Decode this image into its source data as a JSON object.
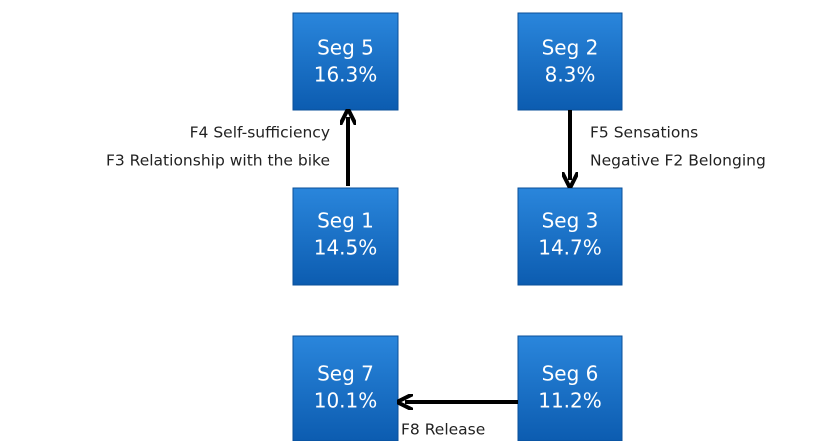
{
  "nodes": [
    {
      "label": "Seg 5",
      "value": "16.3%"
    },
    {
      "label": "Seg 2",
      "value": "8.3%"
    },
    {
      "label": "Seg 1",
      "value": "14.5%"
    },
    {
      "label": "Seg 3",
      "value": "14.7%"
    },
    {
      "label": "Seg 7",
      "value": "10.1%"
    },
    {
      "label": "Seg 6",
      "value": "11.2%"
    }
  ],
  "edges": [
    {
      "labels": [
        "F4 Self-sufficiency",
        "F3 Relationship with the bike"
      ]
    },
    {
      "labels": [
        "F5 Sensations",
        "Negative F2 Belonging"
      ]
    },
    {
      "labels": [
        "F8 Release"
      ]
    }
  ]
}
